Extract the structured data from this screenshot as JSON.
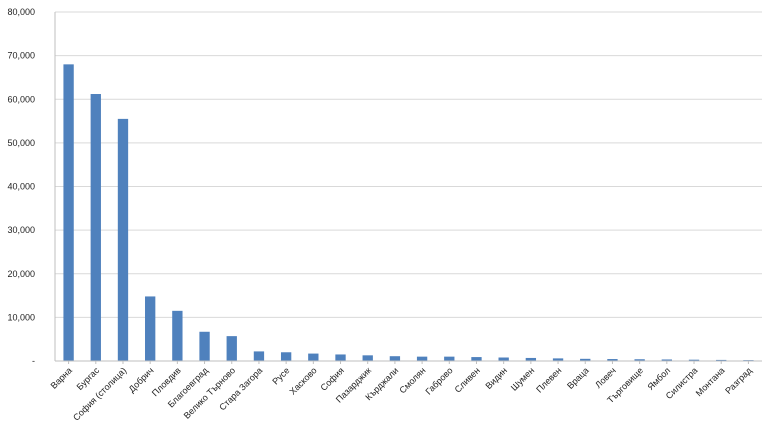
{
  "chart_data": {
    "type": "bar",
    "title": "",
    "xlabel": "",
    "ylabel": "",
    "ylim": [
      0,
      80000
    ],
    "yticks": [
      0,
      10000,
      20000,
      30000,
      40000,
      50000,
      60000,
      70000,
      80000
    ],
    "ytick_labels": [
      "-",
      "10,000",
      "20,000",
      "30,000",
      "40,000",
      "50,000",
      "60,000",
      "70,000",
      "80,000"
    ],
    "grid": true,
    "legend": "none",
    "bar_color": "#4f81bd",
    "gridline_color": "#d9d9d9",
    "categories": [
      "Варна",
      "Бургас",
      "София (столица)",
      "Добрич",
      "Пловдив",
      "Благоевград",
      "Велико Търново",
      "Стара Загора",
      "Русе",
      "Хасково",
      "София",
      "Пазарджик",
      "Кърджали",
      "Смолян",
      "Габрово",
      "Сливен",
      "Видин",
      "Шумен",
      "Плевен",
      "Враца",
      "Ловеч",
      "Търговище",
      "Ямбол",
      "Силистра",
      "Монтана",
      "Разград"
    ],
    "values": [
      68000,
      61200,
      55500,
      14800,
      11500,
      6700,
      5700,
      2200,
      2000,
      1700,
      1500,
      1300,
      1100,
      1000,
      1000,
      900,
      800,
      700,
      600,
      500,
      450,
      400,
      350,
      300,
      250,
      200
    ]
  }
}
